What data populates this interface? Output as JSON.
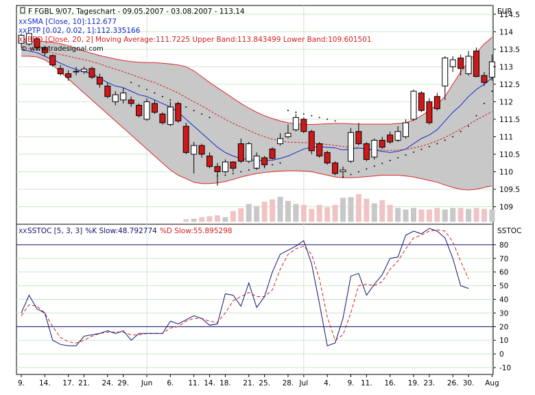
{
  "colors": {
    "frame": "#000000",
    "grid": "#cbe6cb",
    "band_fill": "#c8c8c8",
    "band_line": "#e0262a",
    "ma_line": "#d42020",
    "sma_line": "#1428c8",
    "candle_up": "#ffffff",
    "candle_down": "#d01818",
    "volume_up": "#c8c8c8",
    "volume_down": "#f0c4c4",
    "k_line": "#101070",
    "d_line": "#d42020",
    "level_line": "#101070"
  },
  "legend": {
    "title": "F FGBL 9/07, Tageschart - 09.05.2007 - 03.08.2007 - 113.14",
    "sma": "SMA [Close, 10]:112.677",
    "ptp": "PTP [0.02, 0.02, 1]:112.335166",
    "bbd_prefix": "BBD [Close, 20, 2]",
    "bbd_values": "Moving Average:111.7225 Upper Band:113.843499 Lower Band:109.601501",
    "watermark": "© www.tradesignal.com",
    "sstoc_prefix": "SSTOC [5, 3, 3]",
    "sstoc_k": "%K Slow:48.792774",
    "sstoc_d": "%D Slow:55.895298",
    "marker": "XX"
  },
  "chart_data": [
    {
      "type": "candlestick",
      "title": "F FGBL 9/07, Tageschart",
      "currency": "EUR",
      "ylim": [
        108.5,
        114.75
      ],
      "y_ticks": [
        109,
        109.5,
        110,
        110.5,
        111,
        111.5,
        112,
        112.5,
        113,
        113.5,
        114,
        114.5
      ],
      "x_tick_labels": [
        "9.",
        "14.",
        "17.",
        "21.",
        "24.",
        "29.",
        "Jun",
        "6.",
        "11.",
        "14.",
        "18.",
        "21.",
        "25.",
        "28.",
        "Jul",
        "4.",
        "9.",
        "11.",
        "16.",
        "19.",
        "23.",
        "26.",
        "30.",
        "Aug"
      ],
      "x_tick_index": [
        0,
        3,
        6,
        8,
        11,
        13,
        16,
        19,
        22,
        24,
        26,
        29,
        31,
        34,
        36,
        39,
        42,
        44,
        47,
        50,
        52,
        55,
        57,
        60
      ],
      "month_separators": [
        16,
        36,
        60
      ],
      "open": [
        113.67,
        113.65,
        113.8,
        113.55,
        113.32,
        112.95,
        112.8,
        112.85,
        112.86,
        112.95,
        112.7,
        112.45,
        112.0,
        112.05,
        112.05,
        111.9,
        111.5,
        111.95,
        111.65,
        111.35,
        111.95,
        111.3,
        110.5,
        110.75,
        110.45,
        110.15,
        110.0,
        110.28,
        110.8,
        110.3,
        110.1,
        110.4,
        110.65,
        110.8,
        111.0,
        111.2,
        111.5,
        111.15,
        110.8,
        110.55,
        110.25,
        110.0,
        110.3,
        111.15,
        110.8,
        110.42,
        110.9,
        111.05,
        110.9,
        111.0,
        111.5,
        112.25,
        112.0,
        112.15,
        112.45,
        113.0,
        113.25,
        112.8,
        113.45,
        112.75,
        112.7
      ],
      "close": [
        113.9,
        113.95,
        113.55,
        113.4,
        113.05,
        112.8,
        112.7,
        112.87,
        112.93,
        112.7,
        112.5,
        112.15,
        112.2,
        112.25,
        111.95,
        111.6,
        112.0,
        111.7,
        111.4,
        111.85,
        111.45,
        110.55,
        110.75,
        110.5,
        110.15,
        110.0,
        110.28,
        110.1,
        110.3,
        110.8,
        110.45,
        110.2,
        110.38,
        110.95,
        111.1,
        111.55,
        111.15,
        110.6,
        110.45,
        110.25,
        109.95,
        110.05,
        111.12,
        110.8,
        110.35,
        110.9,
        110.7,
        110.85,
        111.15,
        111.4,
        112.3,
        111.75,
        111.4,
        111.8,
        113.25,
        113.2,
        112.95,
        113.3,
        112.72,
        112.55,
        113.14
      ],
      "high": [
        113.95,
        113.96,
        113.85,
        113.6,
        113.35,
        113.05,
        112.9,
        113.0,
        113.0,
        113.0,
        112.8,
        112.55,
        112.3,
        112.4,
        112.15,
        111.95,
        112.1,
        112.05,
        111.7,
        112.0,
        112.0,
        111.4,
        110.85,
        110.8,
        110.55,
        110.25,
        110.35,
        110.3,
        110.95,
        110.85,
        110.55,
        110.45,
        110.7,
        111.1,
        111.35,
        111.65,
        111.55,
        111.2,
        110.85,
        110.6,
        110.3,
        110.15,
        111.25,
        111.4,
        110.85,
        110.95,
        111.0,
        111.15,
        111.3,
        111.5,
        112.35,
        112.3,
        112.1,
        112.25,
        113.3,
        113.3,
        113.35,
        113.45,
        113.55,
        112.85,
        113.35
      ],
      "low": [
        113.55,
        113.6,
        113.5,
        113.3,
        113.0,
        112.75,
        112.6,
        112.75,
        112.8,
        112.65,
        112.4,
        112.1,
        111.9,
        111.95,
        111.85,
        111.55,
        111.45,
        111.65,
        111.35,
        111.3,
        111.4,
        110.5,
        109.95,
        110.4,
        110.1,
        109.6,
        109.95,
        110.0,
        110.25,
        110.25,
        110.05,
        110.1,
        110.35,
        110.75,
        110.95,
        111.15,
        111.1,
        110.5,
        110.4,
        110.2,
        109.9,
        109.85,
        110.25,
        110.75,
        110.3,
        110.35,
        110.65,
        110.8,
        110.85,
        110.95,
        111.45,
        111.7,
        111.35,
        111.75,
        112.05,
        112.85,
        112.75,
        112.75,
        112.7,
        112.45,
        112.6
      ],
      "sma_10": [
        113.5,
        113.45,
        113.4,
        113.3,
        113.2,
        113.1,
        113.0,
        112.92,
        112.86,
        112.8,
        112.68,
        112.55,
        112.45,
        112.4,
        112.3,
        112.2,
        112.15,
        112.05,
        111.95,
        111.85,
        111.7,
        111.5,
        111.3,
        111.1,
        110.9,
        110.7,
        110.55,
        110.45,
        110.38,
        110.35,
        110.32,
        110.32,
        110.33,
        110.38,
        110.45,
        110.55,
        110.65,
        110.7,
        110.72,
        110.7,
        110.68,
        110.62,
        110.65,
        110.68,
        110.65,
        110.62,
        110.58,
        110.55,
        110.58,
        110.65,
        110.8,
        110.95,
        111.05,
        111.2,
        111.45,
        111.7,
        111.9,
        112.15,
        112.35,
        112.5,
        112.68
      ],
      "ma_20": [
        113.55,
        113.52,
        113.48,
        113.44,
        113.4,
        113.35,
        113.3,
        113.25,
        113.2,
        113.15,
        113.08,
        113.0,
        112.93,
        112.86,
        112.78,
        112.7,
        112.62,
        112.55,
        112.45,
        112.35,
        112.25,
        112.12,
        112.0,
        111.88,
        111.75,
        111.62,
        111.5,
        111.38,
        111.28,
        111.18,
        111.08,
        111.0,
        110.93,
        110.88,
        110.85,
        110.84,
        110.83,
        110.82,
        110.8,
        110.78,
        110.75,
        110.72,
        110.7,
        110.68,
        110.65,
        110.63,
        110.62,
        110.61,
        110.62,
        110.64,
        110.68,
        110.73,
        110.8,
        110.88,
        110.98,
        111.1,
        111.22,
        111.35,
        111.48,
        111.6,
        111.72
      ],
      "upper_band": [
        113.7,
        113.72,
        113.73,
        113.72,
        113.7,
        113.66,
        113.6,
        113.52,
        113.45,
        113.38,
        113.32,
        113.27,
        113.22,
        113.18,
        113.15,
        113.13,
        113.12,
        113.12,
        113.1,
        113.08,
        113.05,
        113.0,
        112.88,
        112.72,
        112.55,
        112.4,
        112.25,
        112.1,
        111.95,
        111.82,
        111.7,
        111.6,
        111.52,
        111.45,
        111.4,
        111.37,
        111.35,
        111.35,
        111.36,
        111.37,
        111.38,
        111.38,
        111.37,
        111.36,
        111.36,
        111.36,
        111.36,
        111.36,
        111.38,
        111.4,
        111.48,
        111.6,
        111.75,
        111.92,
        112.15,
        112.5,
        112.85,
        113.15,
        113.4,
        113.65,
        113.84
      ],
      "lower_band": [
        113.3,
        113.3,
        113.28,
        113.2,
        113.05,
        112.85,
        112.65,
        112.45,
        112.25,
        112.05,
        111.85,
        111.65,
        111.45,
        111.25,
        111.05,
        110.85,
        110.65,
        110.45,
        110.25,
        110.05,
        109.9,
        109.8,
        109.7,
        109.66,
        109.66,
        109.68,
        109.72,
        109.78,
        109.85,
        109.9,
        109.95,
        109.98,
        110.0,
        110.02,
        110.03,
        110.03,
        110.02,
        110.0,
        109.95,
        109.9,
        109.85,
        109.83,
        109.83,
        109.84,
        109.86,
        109.88,
        109.9,
        109.9,
        109.9,
        109.88,
        109.85,
        109.8,
        109.75,
        109.7,
        109.62,
        109.55,
        109.5,
        109.48,
        109.5,
        109.55,
        109.6
      ],
      "ptp_index": [
        14,
        15,
        16,
        17,
        18,
        19,
        20,
        21,
        22,
        23,
        24,
        25,
        26,
        27,
        28,
        29,
        30,
        31,
        32,
        33,
        34,
        35,
        36,
        37,
        38,
        39,
        40,
        41,
        42,
        43,
        44,
        45,
        46,
        47,
        48,
        49,
        50,
        51,
        52,
        53,
        54,
        55,
        56,
        57,
        58,
        59,
        60
      ],
      "ptp_values": [
        112.55,
        112.45,
        112.35,
        112.25,
        112.15,
        112.05,
        111.95,
        111.85,
        111.75,
        111.65,
        111.55,
        109.88,
        109.9,
        109.95,
        110.0,
        110.05,
        110.1,
        110.15,
        110.2,
        110.25,
        111.75,
        111.7,
        111.65,
        111.6,
        111.55,
        111.5,
        111.45,
        109.85,
        109.92,
        110.0,
        110.08,
        110.16,
        110.24,
        110.32,
        110.4,
        110.48,
        110.56,
        110.64,
        110.72,
        110.8,
        110.9,
        111.0,
        111.15,
        111.3,
        111.6,
        111.95,
        112.3
      ],
      "volume": [
        0,
        0,
        0,
        0,
        0,
        0,
        0,
        0,
        0,
        0,
        0,
        0,
        0,
        0,
        0,
        0,
        0,
        0,
        0,
        0,
        0,
        0.08,
        0.1,
        0.15,
        0.18,
        0.21,
        0.15,
        0.35,
        0.44,
        0.58,
        0.51,
        0.65,
        0.73,
        0.81,
        0.68,
        0.58,
        0.55,
        0.42,
        0.55,
        0.47,
        0.55,
        0.78,
        0.8,
        0.9,
        0.75,
        0.6,
        0.7,
        0.55,
        0.45,
        0.4,
        0.45,
        0.4,
        0.4,
        0.45,
        0.4,
        0.45,
        0.45,
        0.42,
        0.45,
        0.42,
        0.4
      ]
    },
    {
      "type": "line",
      "title": "SSTOC [5, 3, 3]",
      "label": "SSTOC",
      "ylim": [
        -15,
        95
      ],
      "y_ticks": [
        -10,
        0,
        10,
        20,
        30,
        40,
        50,
        60,
        70,
        80
      ],
      "levels": [
        20,
        80
      ],
      "series": [
        {
          "name": "%K Slow",
          "values": [
            30,
            43,
            33,
            30,
            10,
            7,
            6,
            6,
            13,
            14,
            15,
            17,
            15,
            17,
            10,
            15,
            15,
            15,
            15,
            24,
            22,
            25,
            28,
            26,
            21,
            22,
            44,
            43,
            35,
            52,
            34,
            42,
            60,
            73,
            76,
            79,
            83,
            66,
            37,
            6,
            8,
            26,
            57,
            59,
            43,
            51,
            58,
            70,
            71,
            87,
            90,
            88,
            92,
            90,
            85,
            70,
            50,
            48
          ]
        },
        {
          "name": "%D Slow",
          "values": [
            28,
            36,
            35,
            30,
            20,
            12,
            9,
            8,
            10,
            13,
            15,
            16,
            16,
            16,
            14,
            14,
            15,
            15,
            15,
            19,
            20,
            24,
            26,
            26,
            24,
            23,
            30,
            39,
            42,
            45,
            42,
            42,
            47,
            62,
            73,
            77,
            79,
            73,
            55,
            27,
            10,
            14,
            30,
            50,
            51,
            50,
            53,
            62,
            68,
            77,
            85,
            87,
            90,
            91,
            90,
            82,
            68,
            55
          ]
        }
      ]
    }
  ]
}
